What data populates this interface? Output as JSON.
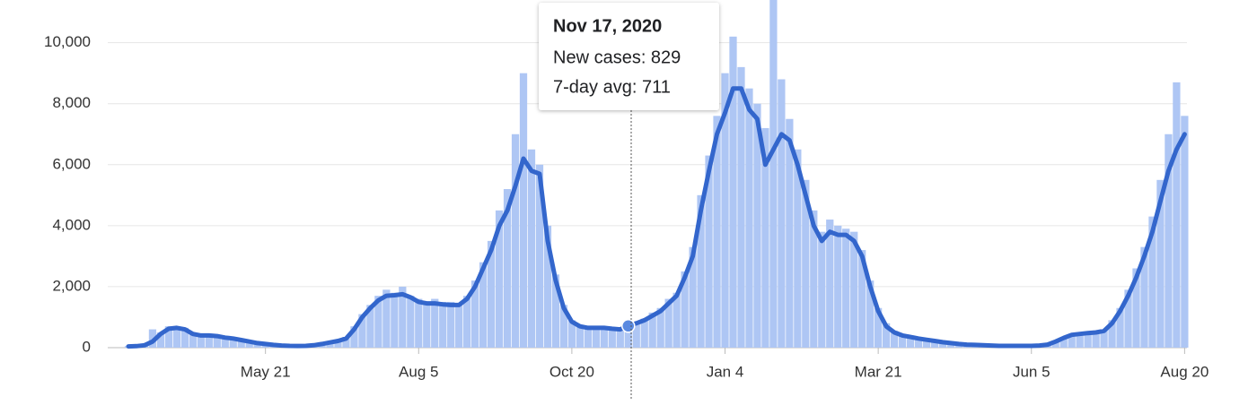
{
  "chart_data": {
    "type": "combo",
    "x": [
      null,
      null,
      null,
      null,
      null,
      null,
      null,
      null,
      null,
      null,
      null,
      null,
      null,
      null,
      null,
      null,
      null,
      "May 21",
      null,
      null,
      null,
      null,
      null,
      null,
      null,
      null,
      null,
      null,
      null,
      null,
      null,
      null,
      null,
      null,
      null,
      null,
      "Aug 5",
      null,
      null,
      null,
      null,
      null,
      null,
      null,
      null,
      null,
      null,
      null,
      null,
      null,
      null,
      null,
      null,
      null,
      null,
      "Oct 20",
      null,
      null,
      null,
      null,
      null,
      null,
      null,
      null,
      null,
      null,
      null,
      null,
      null,
      null,
      null,
      null,
      null,
      null,
      "Jan 4",
      null,
      null,
      null,
      null,
      null,
      null,
      null,
      null,
      null,
      null,
      null,
      null,
      null,
      null,
      null,
      null,
      null,
      null,
      "Mar 21",
      null,
      null,
      null,
      null,
      null,
      null,
      null,
      null,
      null,
      null,
      null,
      null,
      null,
      null,
      null,
      null,
      null,
      null,
      "Jun 5",
      null,
      null,
      null,
      null,
      null,
      null,
      null,
      null,
      null,
      null,
      null,
      null,
      null,
      null,
      null,
      null,
      null,
      null,
      "Aug 20"
    ],
    "series": [
      {
        "kind": "bar",
        "color": "#aec6f4",
        "values": [
          50,
          60,
          100,
          600,
          500,
          700,
          680,
          650,
          500,
          420,
          430,
          400,
          350,
          320,
          270,
          220,
          170,
          140,
          100,
          80,
          70,
          60,
          70,
          100,
          150,
          200,
          260,
          350,
          700,
          1100,
          1400,
          1700,
          1900,
          1800,
          2000,
          1700,
          1600,
          1500,
          1600,
          1500,
          1500,
          1450,
          1700,
          2200,
          2800,
          3500,
          4500,
          5200,
          7000,
          9000,
          6500,
          6000,
          4000,
          2400,
          1400,
          900,
          750,
          700,
          700,
          680,
          650,
          620,
          829,
          850,
          950,
          1150,
          1300,
          1600,
          1800,
          2500,
          3300,
          5000,
          6300,
          7600,
          9000,
          10200,
          9200,
          8500,
          8000,
          7200,
          11400,
          8800,
          7500,
          6500,
          5500,
          4500,
          3800,
          4200,
          4000,
          3900,
          3800,
          3200,
          2200,
          1300,
          800,
          550,
          420,
          380,
          320,
          280,
          240,
          200,
          170,
          130,
          110,
          100,
          90,
          80,
          70,
          70,
          70,
          70,
          70,
          80,
          120,
          220,
          350,
          450,
          500,
          520,
          550,
          600,
          900,
          1300,
          1900,
          2600,
          3300,
          4300,
          5500,
          7000,
          8700,
          7600
        ]
      },
      {
        "kind": "line",
        "color": "#3366cc",
        "values": [
          40,
          50,
          80,
          200,
          450,
          620,
          650,
          600,
          450,
          400,
          400,
          380,
          330,
          300,
          250,
          200,
          150,
          120,
          90,
          70,
          60,
          55,
          60,
          80,
          120,
          170,
          220,
          300,
          600,
          1000,
          1300,
          1550,
          1700,
          1720,
          1750,
          1650,
          1500,
          1450,
          1450,
          1420,
          1400,
          1400,
          1600,
          2000,
          2600,
          3200,
          4000,
          4500,
          5300,
          6200,
          5800,
          5700,
          3500,
          2200,
          1300,
          850,
          700,
          650,
          650,
          650,
          620,
          600,
          711,
          800,
          900,
          1050,
          1200,
          1450,
          1700,
          2300,
          3000,
          4500,
          5800,
          7000,
          7700,
          8500,
          8500,
          7800,
          7500,
          6000,
          6500,
          7000,
          6800,
          6000,
          5000,
          4000,
          3500,
          3800,
          3700,
          3700,
          3500,
          3000,
          2000,
          1200,
          700,
          500,
          400,
          350,
          300,
          260,
          220,
          180,
          150,
          120,
          100,
          90,
          80,
          70,
          60,
          60,
          60,
          60,
          60,
          70,
          100,
          200,
          320,
          420,
          450,
          480,
          500,
          550,
          800,
          1200,
          1700,
          2300,
          3000,
          3800,
          4800,
          5800,
          6500,
          7000
        ]
      }
    ],
    "ylim": [
      0,
      11400
    ],
    "yticks": [
      0,
      {
        "value": 2000,
        "label": "2,000"
      },
      {
        "value": 4000,
        "label": "4,000"
      },
      {
        "value": 6000,
        "label": "6,000"
      },
      {
        "value": 8000,
        "label": "8,000"
      },
      {
        "value": 10000,
        "label": "10,000"
      }
    ],
    "grid": true,
    "tooltip": {
      "title": "Nov 17, 2020",
      "rows": [
        "New cases: 829",
        "7-day avg: 711"
      ]
    }
  }
}
